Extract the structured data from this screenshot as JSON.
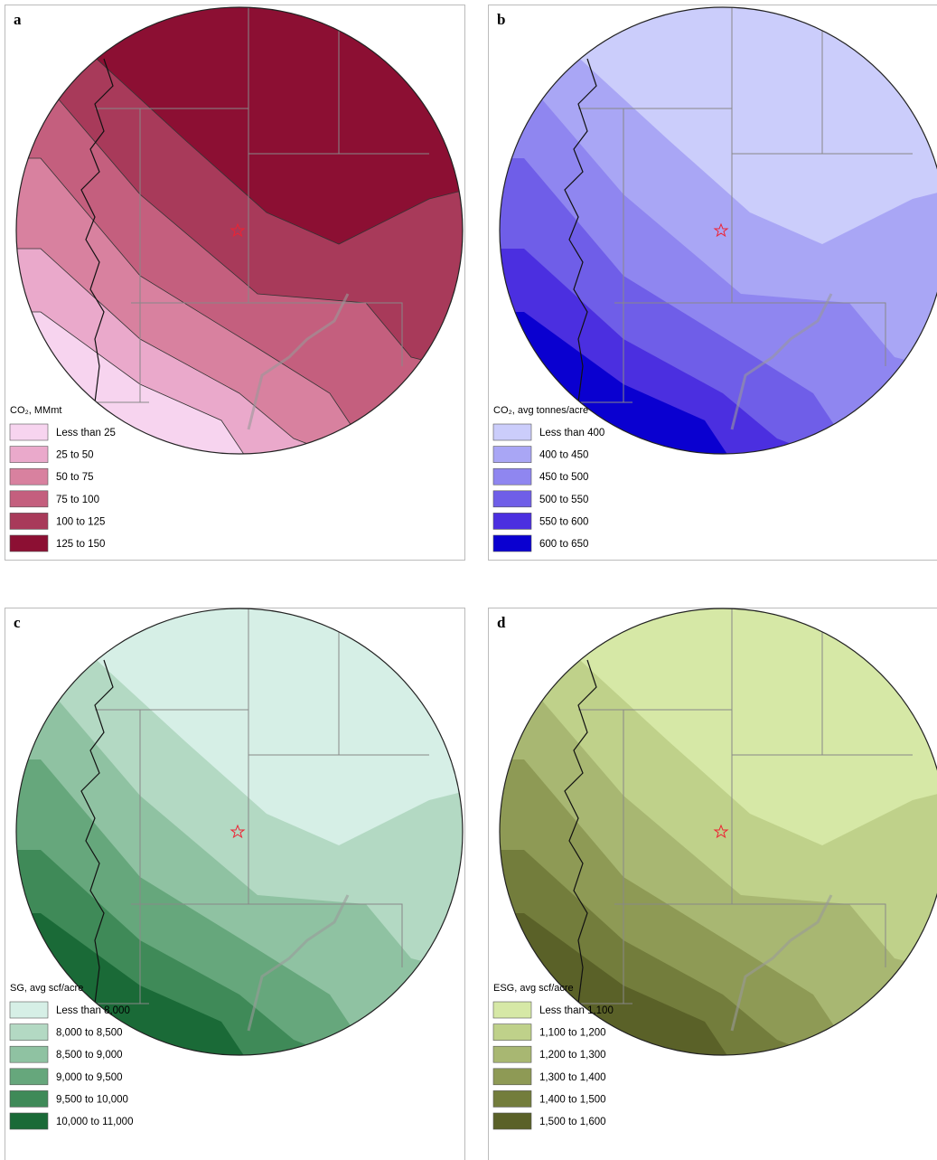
{
  "panels": [
    {
      "label": "a",
      "legend_title": "CO₂, MMmt",
      "legend": [
        {
          "label": "Less than 25",
          "color": "#f7d4ef"
        },
        {
          "label": "25 to 50",
          "color": "#eaa9cb"
        },
        {
          "label": "50 to 75",
          "color": "#d8819f"
        },
        {
          "label": "75 to 100",
          "color": "#c45f7e"
        },
        {
          "label": "100 to 125",
          "color": "#a83a5a"
        },
        {
          "label": "125 to 150",
          "color": "#8c0f33"
        }
      ]
    },
    {
      "label": "b",
      "legend_title": "CO₂, avg tonnes/acre",
      "legend": [
        {
          "label": "Less than 400",
          "color": "#cbcdfb"
        },
        {
          "label": "400 to 450",
          "color": "#a9a6f5"
        },
        {
          "label": "450 to 500",
          "color": "#8f86f0"
        },
        {
          "label": "500 to 550",
          "color": "#6f5ee8"
        },
        {
          "label": "550 to 600",
          "color": "#4b2fe0"
        },
        {
          "label": "600 to 650",
          "color": "#0a00d0"
        }
      ]
    },
    {
      "label": "c",
      "legend_title": "SG, avg scf/acre",
      "legend": [
        {
          "label": "Less than 8,000",
          "color": "#d6efe6"
        },
        {
          "label": "8,000 to 8,500",
          "color": "#b3d9c3"
        },
        {
          "label": "8,500 to 9,000",
          "color": "#8fc2a2"
        },
        {
          "label": "9,000 to 9,500",
          "color": "#66a77c"
        },
        {
          "label": "9,500 to 10,000",
          "color": "#3f8a58"
        },
        {
          "label": "10,000 to 11,000",
          "color": "#1a6a37"
        }
      ]
    },
    {
      "label": "d",
      "legend_title": "ESG, avg scf/acre",
      "legend": [
        {
          "label": "Less than 1,100",
          "color": "#d6e8a6"
        },
        {
          "label": "1,100 to 1,200",
          "color": "#bfd18a"
        },
        {
          "label": "1,200 to 1,300",
          "color": "#a8b772"
        },
        {
          "label": "1,300 to 1,400",
          "color": "#8e9a55"
        },
        {
          "label": "1,400 to 1,500",
          "color": "#737d3c"
        },
        {
          "label": "1,500 to 1,600",
          "color": "#5a6128"
        }
      ]
    }
  ]
}
